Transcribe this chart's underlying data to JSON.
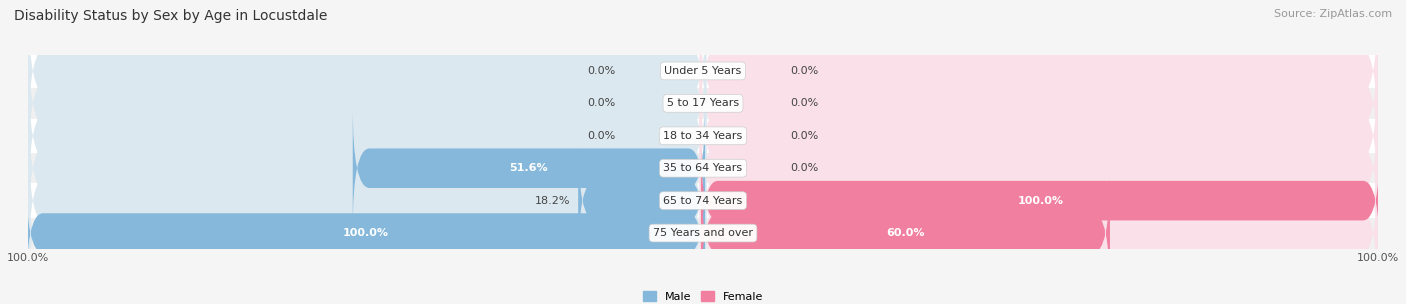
{
  "title": "Disability Status by Sex by Age in Locustdale",
  "source": "Source: ZipAtlas.com",
  "categories": [
    "Under 5 Years",
    "5 to 17 Years",
    "18 to 34 Years",
    "35 to 64 Years",
    "65 to 74 Years",
    "75 Years and over"
  ],
  "male_values": [
    0.0,
    0.0,
    0.0,
    51.6,
    18.2,
    100.0
  ],
  "female_values": [
    0.0,
    0.0,
    0.0,
    0.0,
    100.0,
    60.0
  ],
  "male_color": "#85b8db",
  "female_color": "#f07fa0",
  "male_color_light": "#b8d4e8",
  "female_color_light": "#f5b8c8",
  "bg_color": "#f5f5f5",
  "bar_bg_left": "#dce8f0",
  "bar_bg_right": "#fae0e8",
  "bar_height": 0.62,
  "xlim": 100.0,
  "title_fontsize": 10,
  "source_fontsize": 8,
  "label_fontsize": 8,
  "tick_fontsize": 8,
  "category_fontsize": 8,
  "row_sep_color": "#e0e0e0"
}
